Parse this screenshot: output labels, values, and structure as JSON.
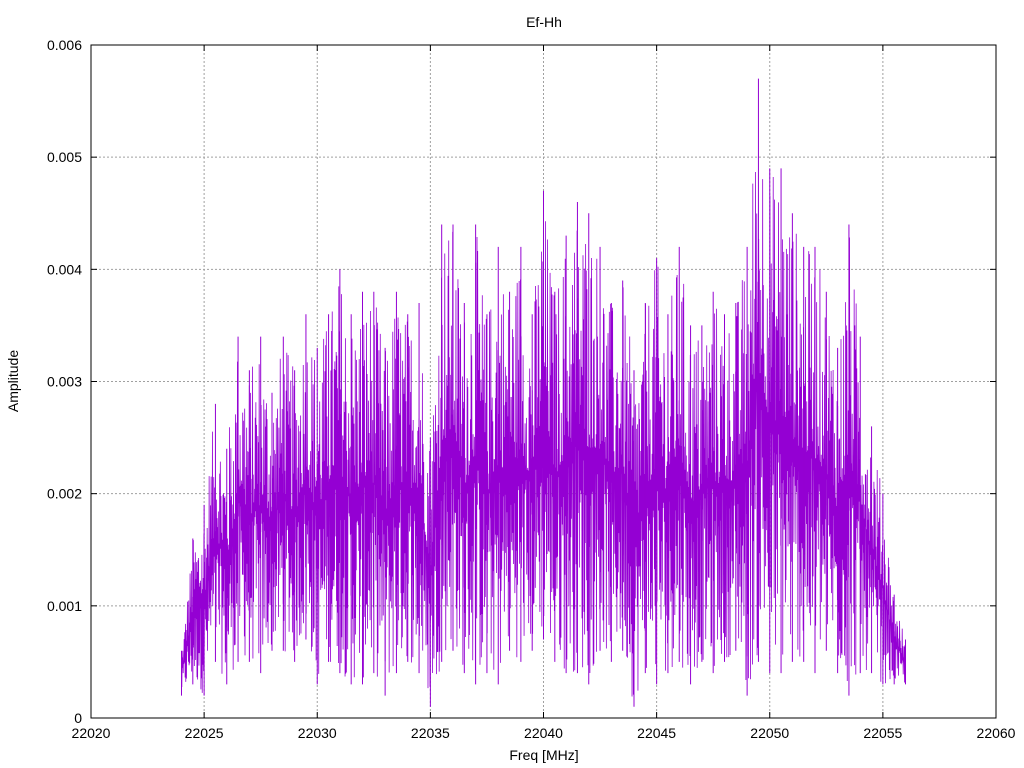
{
  "chart_data": {
    "type": "line",
    "title": "Ef-Hh",
    "xlabel": "Freq [MHz]",
    "ylabel": "Amplitude",
    "xlim": [
      22020,
      22060
    ],
    "ylim": [
      0,
      0.006
    ],
    "xticks": [
      "22020",
      "22025",
      "22030",
      "22035",
      "22040",
      "22045",
      "22050",
      "22055",
      "22060"
    ],
    "yticks": [
      "0",
      "0.001",
      "0.002",
      "0.003",
      "0.004",
      "0.005",
      "0.006"
    ],
    "grid": true,
    "color": "#9400d3",
    "series": [
      {
        "x": [
          22024.0,
          22024.5,
          22025.0,
          22025.5,
          22026.0,
          22026.5,
          22027.0,
          22027.5,
          22028.0,
          22028.5,
          22029.0,
          22029.5,
          22030.0,
          22030.5,
          22031.0,
          22031.5,
          22032.0,
          22032.5,
          22033.0,
          22033.5,
          22034.0,
          22034.5,
          22035.0,
          22035.5,
          22036.0,
          22036.5,
          22037.0,
          22037.5,
          22038.0,
          22038.5,
          22039.0,
          22039.5,
          22040.0,
          22040.5,
          22041.0,
          22041.5,
          22042.0,
          22042.5,
          22043.0,
          22043.5,
          22044.0,
          22044.5,
          22045.0,
          22045.5,
          22046.0,
          22046.5,
          22047.0,
          22047.5,
          22048.0,
          22048.5,
          22049.0,
          22049.5,
          22050.0,
          22050.5,
          22051.0,
          22051.5,
          22052.0,
          22052.5,
          22053.0,
          22053.5,
          22054.0,
          22054.5,
          22055.0,
          22055.5,
          22056.0
        ],
        "y": [
          0.0006,
          0.0016,
          0.0019,
          0.0028,
          0.0024,
          0.0034,
          0.0031,
          0.0034,
          0.0029,
          0.0034,
          0.0031,
          0.0036,
          0.0033,
          0.0036,
          0.004,
          0.0036,
          0.0038,
          0.0038,
          0.0033,
          0.0038,
          0.0036,
          0.0037,
          0.0025,
          0.0044,
          0.0044,
          0.0037,
          0.0044,
          0.0036,
          0.0042,
          0.0038,
          0.0042,
          0.0036,
          0.0047,
          0.0038,
          0.0043,
          0.0046,
          0.0045,
          0.0042,
          0.0037,
          0.0039,
          0.0031,
          0.0037,
          0.0041,
          0.0036,
          0.0042,
          0.0035,
          0.0035,
          0.0038,
          0.0036,
          0.0037,
          0.0042,
          0.0057,
          0.0049,
          0.0049,
          0.0045,
          0.0042,
          0.0042,
          0.0038,
          0.0033,
          0.0044,
          0.0034,
          0.0026,
          0.002,
          0.0011,
          0.0007
        ],
        "y_min": [
          0.0002,
          0.0003,
          0.0002,
          0.0005,
          0.0003,
          0.0005,
          0.0005,
          0.0004,
          0.0006,
          0.0006,
          0.0005,
          0.0007,
          0.0003,
          0.0005,
          0.0004,
          0.0003,
          0.0003,
          0.0004,
          0.0002,
          0.0004,
          0.0005,
          0.0004,
          0.0001,
          0.0005,
          0.0006,
          0.0004,
          0.0003,
          0.0004,
          0.0003,
          0.0006,
          0.0005,
          0.0006,
          0.0007,
          0.0005,
          0.0004,
          0.0004,
          0.0003,
          0.0006,
          0.0005,
          0.0006,
          0.0001,
          0.0004,
          0.0003,
          0.0004,
          0.0005,
          0.0003,
          0.0005,
          0.0004,
          0.0005,
          0.0006,
          0.0002,
          0.0005,
          0.0004,
          0.0004,
          0.0005,
          0.0005,
          0.0004,
          0.0006,
          0.0004,
          0.0002,
          0.0004,
          0.0004,
          0.0003,
          0.0003,
          0.0003
        ]
      }
    ]
  }
}
